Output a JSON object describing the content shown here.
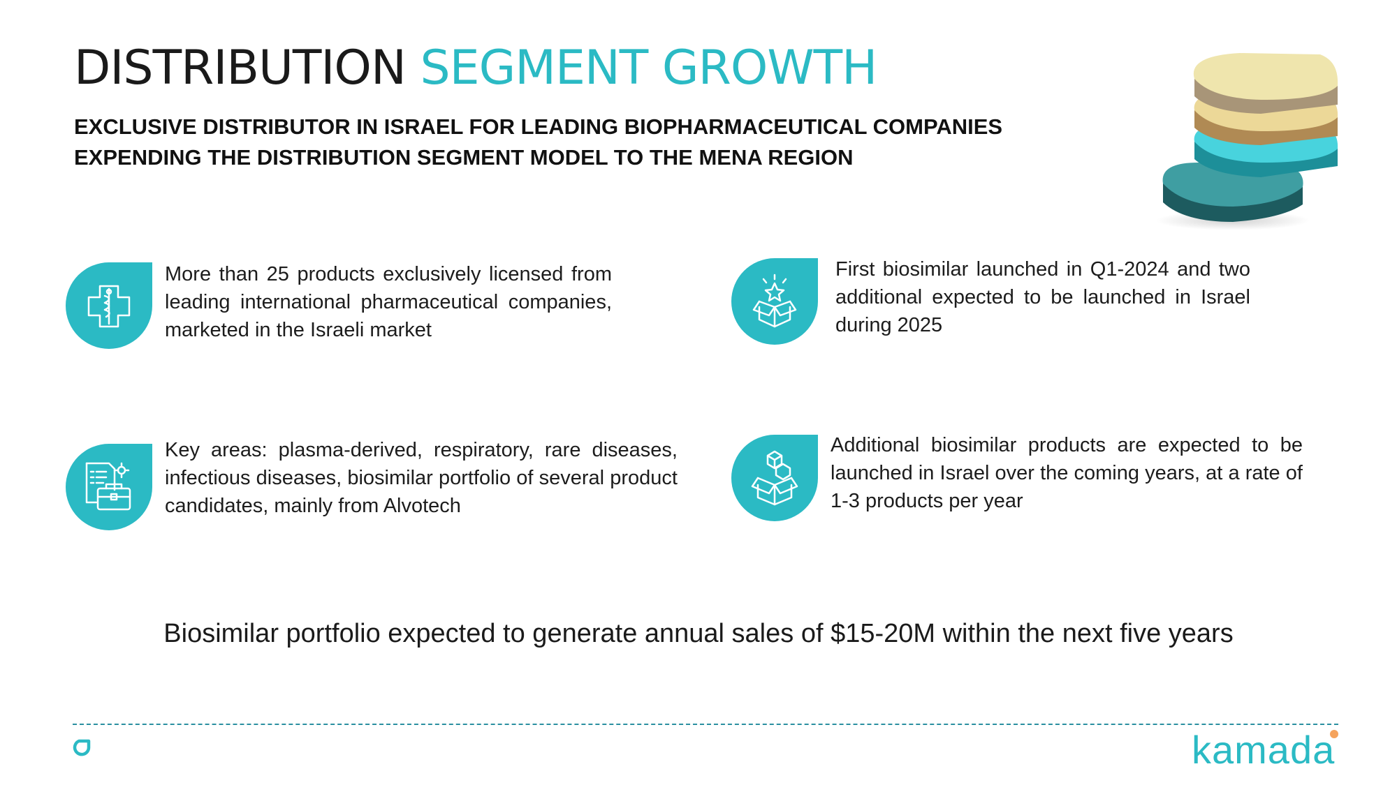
{
  "title": {
    "part1": "DISTRIBUTION",
    "part2": "SEGMENT GROWTH"
  },
  "subtitles": [
    "EXCLUSIVE DISTRIBUTOR IN ISRAEL FOR LEADING BIOPHARMACEUTICAL COMPANIES",
    "EXPENDING THE DISTRIBUTION SEGMENT MODEL TO THE MENA REGION"
  ],
  "items": [
    {
      "icon": "medical-cross-icon",
      "text": "More than 25 products exclusively licensed from leading international pharmaceutical companies, marketed in the Israeli market"
    },
    {
      "icon": "open-box-star-icon",
      "text": "First biosimilar launched in Q1-2024 and two additional expected to be launched in Israel during 2025"
    },
    {
      "icon": "documents-briefcase-icon",
      "text": "Key areas: plasma-derived, respiratory, rare diseases, infectious diseases, biosimilar portfolio of several product candidates, mainly from Alvotech"
    },
    {
      "icon": "box-cubes-icon",
      "text": "Additional biosimilar products are expected to be launched in Israel over the coming years, at a rate of 1-3 products per year"
    }
  ],
  "footer_statement": "Biosimilar portfolio expected to generate annual sales of $15-20M within the next five years",
  "brand": {
    "name": "kamada"
  },
  "colors": {
    "accent": "#2bbac4",
    "brand_dot": "#f5a35c",
    "divider": "#2a8fa0"
  }
}
